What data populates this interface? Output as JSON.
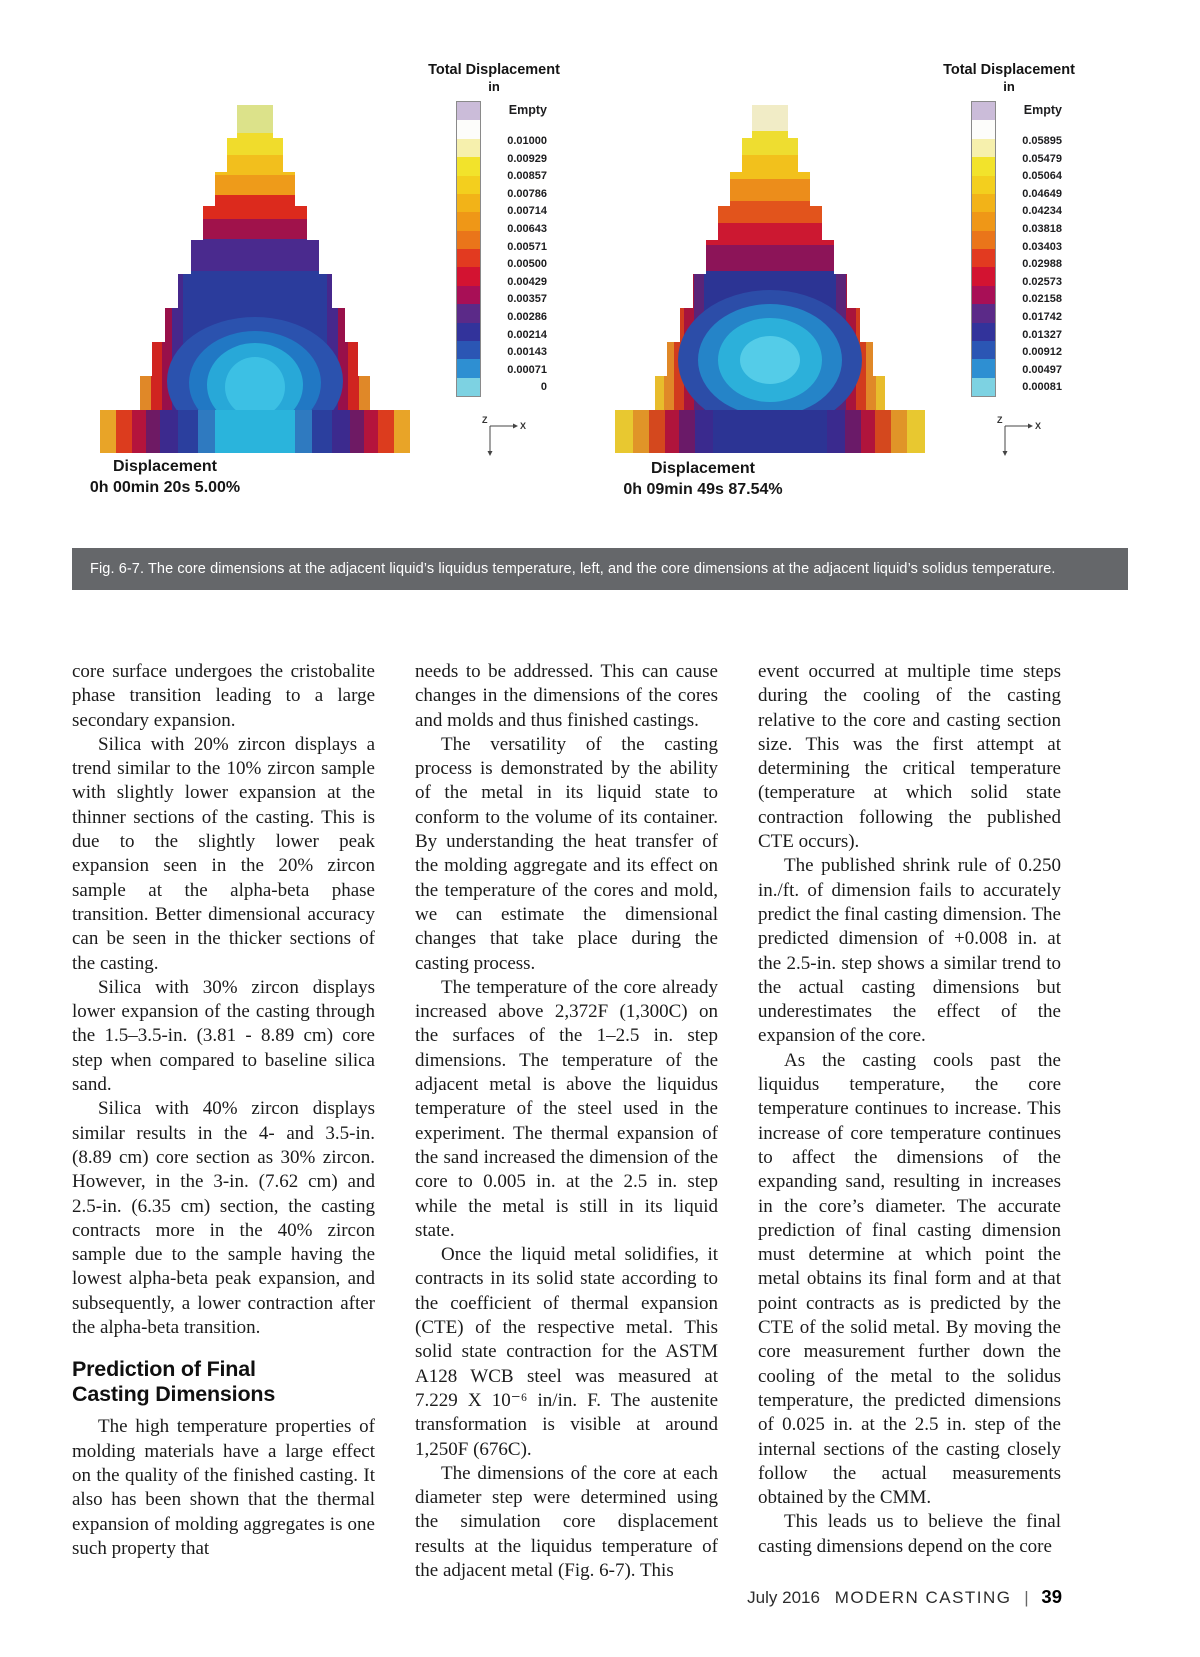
{
  "figure": {
    "caption": "Fig. 6-7. The core dimensions at the adjacent liquid’s liquidus temperature, left, and the core dimensions at the adjacent liquid’s solidus temperature.",
    "legend_title": "Total Displacement",
    "legend_unit": "in",
    "empty_label": "Empty",
    "axis": {
      "x": "X",
      "z": "Z"
    },
    "legend_colors": [
      "#cbbcd9",
      "#fdfdfb",
      "#f6f0ad",
      "#f2e32b",
      "#f3cf1e",
      "#f2b318",
      "#ef9717",
      "#ea751a",
      "#e23a20",
      "#d31331",
      "#a80f56",
      "#5b2a88",
      "#32339b",
      "#2b56b4",
      "#2e8fd2",
      "#7dd2e2"
    ],
    "left": {
      "values": [
        "0.01000",
        "0.00929",
        "0.00857",
        "0.00786",
        "0.00714",
        "0.00643",
        "0.00571",
        "0.00500",
        "0.00429",
        "0.00357",
        "0.00286",
        "0.00214",
        "0.00143",
        "0.00071",
        "0"
      ],
      "label_title": "Displacement",
      "label_time": "0h 00min 20s 5.00%"
    },
    "right": {
      "values": [
        "0.05895",
        "0.05479",
        "0.05064",
        "0.04649",
        "0.04234",
        "0.03818",
        "0.03403",
        "0.02988",
        "0.02573",
        "0.02158",
        "0.01742",
        "0.01327",
        "0.00912",
        "0.00497",
        "0.00081"
      ],
      "label_title": "Displacement",
      "label_time": "0h 09min 49s 87.54%"
    }
  },
  "columns": [
    {
      "name": "left",
      "blocks": [
        {
          "type": "p",
          "indent": false,
          "text": "core surface undergoes the cristobalite phase transition leading to a large secondary expansion."
        },
        {
          "type": "p",
          "indent": true,
          "text": "Silica with 20% zircon displays a trend similar to the 10% zircon sample with slightly lower expansion at the thinner sections of the casting. This is due to the slightly lower peak expansion seen in the 20% zircon sample at the alpha-beta phase transition. Better dimensional accuracy can be seen in the thicker sections of the casting."
        },
        {
          "type": "p",
          "indent": true,
          "text": "Silica with 30% zircon displays lower expansion of the casting through the 1.5–3.5-in. (3.81 - 8.89 cm) core step when compared to baseline silica sand."
        },
        {
          "type": "p",
          "indent": true,
          "text": "Silica with 40% zircon displays similar results in the 4- and 3.5-in. (8.89 cm) core section as 30% zircon. However, in the 3-in. (7.62 cm) and 2.5-in. (6.35 cm) section, the casting contracts more in the 40% zircon sample due to the sample having the lowest alpha-beta peak expansion, and subsequently, a lower contraction after the alpha-beta transition."
        },
        {
          "type": "heading",
          "text": "Prediction of Final\nCasting Dimensions"
        },
        {
          "type": "p",
          "indent": true,
          "text": "The high temperature properties of molding materials have a large effect on the quality of the finished casting. It also has been shown that the thermal expansion of molding aggregates is one such property that"
        }
      ]
    },
    {
      "name": "middle",
      "blocks": [
        {
          "type": "p",
          "indent": false,
          "text": "needs to be addressed.  This can cause changes in the dimensions of the cores and molds and thus finished castings."
        },
        {
          "type": "p",
          "indent": true,
          "text": "The versatility of the casting process is demonstrated by the ability of the metal in its liquid state to conform to the volume of its container. By understanding the heat transfer of the molding aggregate and its effect on the temperature of the cores and mold, we can estimate the dimensional changes that take place during the casting process."
        },
        {
          "type": "p",
          "indent": true,
          "text": "The temperature of the core already increased above 2,372F (1,300C) on the surfaces of the 1–2.5 in. step dimensions.  The temperature of the adjacent metal is above the liquidus temperature of the steel used in the experiment.  The thermal expansion of the sand increased the dimension of the core to 0.005 in. at the 2.5 in. step while the metal is still in its liquid state."
        },
        {
          "type": "p",
          "indent": true,
          "text": "Once the liquid metal solidifies, it contracts in its solid state according to the coefficient of thermal expansion (CTE) of the respective metal.  This solid state contraction for the ASTM A128 WCB steel was measured at 7.229 X 10⁻⁶ in/in. F.  The austenite transformation is visible at around 1,250F (676C)."
        },
        {
          "type": "p",
          "indent": true,
          "text": "The dimensions of the core at each diameter step were determined using the simulation core displacement results at the liquidus temperature of the adjacent metal (Fig. 6-7).  This"
        }
      ]
    },
    {
      "name": "right",
      "blocks": [
        {
          "type": "p",
          "indent": false,
          "text": "event occurred at multiple time steps during the cooling of the casting relative to the core and casting section size.  This was the first attempt at determining the critical temperature (temperature at which solid state contraction following the published CTE occurs)."
        },
        {
          "type": "p",
          "indent": true,
          "text": "The published shrink rule of 0.250 in./ft. of dimension fails to accurately predict the final casting dimension. The predicted dimension of +0.008 in. at the 2.5-in. step shows a similar trend to the actual casting dimensions but underestimates the effect of the expansion of the core."
        },
        {
          "type": "p",
          "indent": true,
          "text": "As the casting cools past the liquidus temperature, the core temperature continues to increase.  This increase of core temperature continues to affect the dimensions of the expanding sand, resulting in increases in the core’s diameter.  The accurate prediction of final casting dimension must determine at which point the metal obtains its final form and at that point contracts as is predicted by the CTE of the solid metal.  By moving the core measurement further down the cooling of the metal to the solidus temperature, the predicted dimensions of 0.025 in. at the 2.5 in. step of the internal sections of the casting closely follow the actual measurements obtained by the CMM."
        },
        {
          "type": "p",
          "indent": true,
          "text": "This leads us to believe the final casting dimensions depend on the core"
        }
      ]
    }
  ],
  "footer": {
    "issue": "July 2016",
    "magazine": "MODERN CASTING",
    "separator": "|",
    "page": "39"
  }
}
